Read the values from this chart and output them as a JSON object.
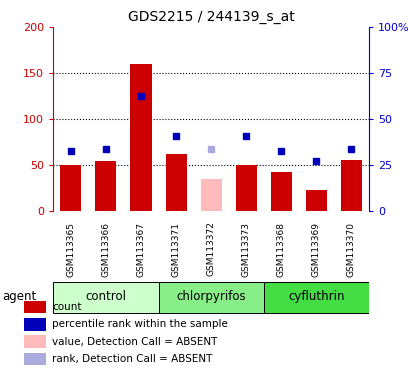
{
  "title": "GDS2215 / 244139_s_at",
  "samples": [
    "GSM113365",
    "GSM113366",
    "GSM113367",
    "GSM113371",
    "GSM113372",
    "GSM113373",
    "GSM113368",
    "GSM113369",
    "GSM113370"
  ],
  "bar_values": [
    50,
    54,
    160,
    62,
    35,
    50,
    42,
    23,
    56
  ],
  "bar_colors": [
    "#cc0000",
    "#cc0000",
    "#cc0000",
    "#cc0000",
    "#ffbbbb",
    "#cc0000",
    "#cc0000",
    "#cc0000",
    "#cc0000"
  ],
  "rank_values": [
    32.5,
    34,
    62.5,
    41,
    34,
    41,
    32.5,
    27,
    34
  ],
  "rank_colors": [
    "#0000bb",
    "#0000bb",
    "#0000bb",
    "#0000bb",
    "#aaaadd",
    "#0000bb",
    "#0000bb",
    "#0000bb",
    "#0000bb"
  ],
  "groups": [
    {
      "label": "control",
      "start": 0,
      "end": 3,
      "color": "#ccffcc"
    },
    {
      "label": "chlorpyrifos",
      "start": 3,
      "end": 6,
      "color": "#88ee88"
    },
    {
      "label": "cyfluthrin",
      "start": 6,
      "end": 9,
      "color": "#44dd44"
    }
  ],
  "ylim_left": [
    0,
    200
  ],
  "ylim_right": [
    0,
    100
  ],
  "yticks_left": [
    0,
    50,
    100,
    150,
    200
  ],
  "ytick_labels_left": [
    "0",
    "50",
    "100",
    "150",
    "200"
  ],
  "yticks_right": [
    0,
    25,
    50,
    75,
    100
  ],
  "ytick_labels_right": [
    "0",
    "25",
    "50",
    "75",
    "100%"
  ],
  "grid_yticks": [
    50,
    100,
    150
  ],
  "left_color": "#cc0000",
  "right_color": "#0000cc",
  "agent_label": "agent",
  "xtick_bg_color": "#cccccc",
  "plot_bg_color": "#ffffff",
  "legend": [
    {
      "label": "count",
      "color": "#cc0000"
    },
    {
      "label": "percentile rank within the sample",
      "color": "#0000bb"
    },
    {
      "label": "value, Detection Call = ABSENT",
      "color": "#ffbbbb"
    },
    {
      "label": "rank, Detection Call = ABSENT",
      "color": "#aaaadd"
    }
  ]
}
